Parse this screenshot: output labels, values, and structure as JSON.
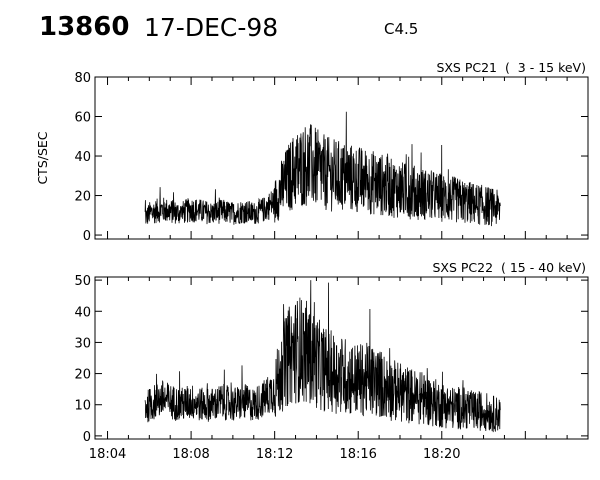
{
  "header": {
    "event_number": "13860",
    "date": "17-DEC-98",
    "flare_class": "C4.5"
  },
  "chart_data": [
    {
      "type": "line",
      "title": "SXS PC21  (  3 - 15 keV)",
      "xlabel": "",
      "ylabel": "CTS/SEC",
      "x_unit": "UT time (minutes past 18:00)",
      "xlim": [
        3.4,
        27.0
      ],
      "ylim": [
        -2,
        80
      ],
      "yticks": [
        0,
        20,
        40,
        60,
        80
      ],
      "grid": false,
      "series": [
        {
          "x": [
            5.8,
            5.85,
            6.0,
            6.3,
            6.6,
            7.0,
            7.5,
            8.0,
            8.5,
            9.0,
            9.5,
            10.0,
            10.5,
            11.0,
            11.5,
            12.0,
            12.3,
            12.6,
            12.9,
            13.2,
            13.5,
            13.8,
            14.1,
            14.5,
            15.0,
            15.5,
            16.0,
            16.5,
            17.0,
            17.5,
            18.0,
            18.5,
            19.0,
            19.5,
            20.0,
            20.5,
            21.0,
            21.5,
            22.0,
            22.5,
            22.8
          ],
          "y": [
            10,
            9,
            11,
            12,
            13,
            12,
            11,
            13,
            12,
            11,
            12,
            11,
            12,
            11,
            13,
            17,
            23,
            28,
            32,
            34,
            36,
            35,
            33,
            31,
            30,
            29,
            28,
            27,
            26,
            24,
            23,
            22,
            21,
            20,
            19,
            18,
            17,
            16,
            15,
            14,
            13
          ]
        }
      ]
    },
    {
      "type": "line",
      "title": "SXS PC22  ( 15 - 40 keV)",
      "xlabel": "",
      "ylabel": "",
      "x_unit": "UT time (minutes past 18:00)",
      "xlim": [
        3.4,
        27.0
      ],
      "ylim": [
        -1,
        51
      ],
      "yticks": [
        0,
        10,
        20,
        30,
        40,
        50
      ],
      "xticks": [
        "18:04",
        "18:08",
        "18:12",
        "18:16",
        "18:20"
      ],
      "grid": false,
      "series": [
        {
          "x": [
            5.8,
            5.85,
            6.0,
            6.3,
            6.6,
            7.0,
            7.5,
            8.0,
            8.5,
            9.0,
            9.5,
            10.0,
            10.5,
            11.0,
            11.5,
            12.0,
            12.3,
            12.6,
            12.9,
            13.2,
            13.5,
            13.8,
            14.1,
            14.5,
            15.0,
            15.5,
            16.0,
            16.5,
            17.0,
            17.5,
            18.0,
            18.5,
            19.0,
            19.5,
            20.0,
            20.5,
            21.0,
            21.5,
            22.0,
            22.5,
            22.8
          ],
          "y": [
            10,
            9,
            10,
            11,
            12,
            11,
            10,
            11,
            10,
            10,
            11,
            10,
            11,
            10,
            12,
            15,
            20,
            25,
            27,
            28,
            27,
            25,
            23,
            21,
            20,
            19,
            18,
            18,
            17,
            15,
            14,
            13,
            12,
            11,
            10,
            9,
            9,
            8,
            8,
            7,
            7
          ]
        }
      ]
    }
  ]
}
